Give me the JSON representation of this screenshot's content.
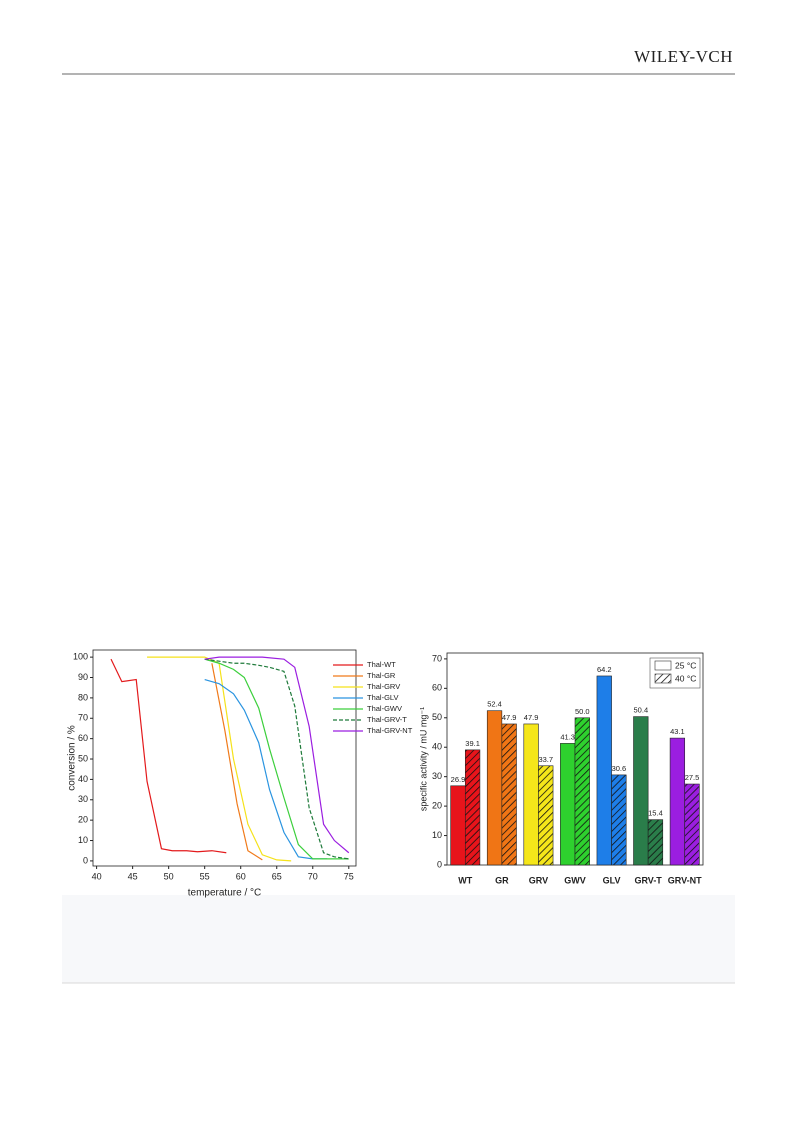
{
  "header": {
    "publisher": "WILEY-VCH"
  },
  "chart_data": [
    {
      "type": "line",
      "xlabel": "temperature / °C",
      "ylabel": "conversion / %",
      "xlim": [
        39.5,
        76
      ],
      "xticks": [
        40,
        45,
        50,
        55,
        60,
        65,
        70,
        75
      ],
      "ylim": [
        -2.5,
        103.5
      ],
      "yticks": [
        0,
        10,
        20,
        30,
        40,
        50,
        60,
        70,
        80,
        90,
        100
      ],
      "legend": "upper right",
      "series": [
        {
          "name": "Thal-WT",
          "color": "#e31a1c",
          "x": [
            42,
            43.5,
            45.5,
            47,
            49,
            50.5,
            52.5,
            54,
            56,
            58
          ],
          "values": [
            99,
            88,
            89,
            39,
            6,
            5,
            5,
            4.5,
            5,
            4
          ]
        },
        {
          "name": "Thal-GR",
          "color": "#f07a1a",
          "x": [
            56,
            57.8,
            59.5,
            61,
            63
          ],
          "values": [
            97,
            64,
            28,
            5,
            0.5
          ]
        },
        {
          "name": "Thal-GRV",
          "color": "#f5e21a",
          "x": [
            47,
            49,
            51,
            53,
            55,
            57,
            59,
            61,
            63,
            65,
            67
          ],
          "values": [
            100,
            100,
            100,
            100,
            100,
            97,
            50,
            18,
            3,
            0.5,
            0
          ]
        },
        {
          "name": "Thal-GLV",
          "color": "#2a94e0",
          "x": [
            55,
            57,
            59,
            60.5,
            62.5,
            64,
            66,
            68,
            70,
            72
          ],
          "values": [
            89,
            87,
            82,
            74,
            58,
            35,
            14,
            2,
            1,
            1
          ]
        },
        {
          "name": "Thal-GWV",
          "color": "#3ccf3c",
          "x": [
            55,
            57,
            59,
            60.5,
            62.5,
            64,
            66,
            68,
            70,
            72,
            75
          ],
          "values": [
            99,
            97,
            94,
            90,
            75,
            55,
            31,
            8,
            1,
            1,
            1
          ]
        },
        {
          "name": "Thal-GRV-T",
          "color": "#1e7a3a",
          "dashed": true,
          "x": [
            55,
            57,
            59,
            60.5,
            62.5,
            64,
            66,
            67.5,
            69.5,
            71.5,
            73,
            75
          ],
          "values": [
            99,
            98,
            97,
            97,
            96,
            95,
            93,
            76,
            26,
            4,
            2,
            1
          ]
        },
        {
          "name": "Thal-GRV-NT",
          "color": "#9b1ee0",
          "x": [
            55,
            57,
            59,
            61,
            63,
            66,
            67.5,
            69.5,
            71.5,
            73,
            75
          ],
          "values": [
            99,
            100,
            100,
            100,
            100,
            99,
            95,
            66,
            18,
            10,
            4
          ]
        }
      ]
    },
    {
      "type": "bar",
      "ylabel": "specific activity / mU mg⁻¹",
      "categories": [
        "WT",
        "GR",
        "GRV",
        "GWV",
        "GLV",
        "GRV-T",
        "GRV-NT"
      ],
      "colors": [
        "#e8141b",
        "#f07515",
        "#f5e61a",
        "#2ed12e",
        "#1e7ee8",
        "#2a7d4a",
        "#9b1ee0"
      ],
      "ylim": [
        0,
        72
      ],
      "yticks": [
        0,
        10,
        20,
        30,
        40,
        50,
        60,
        70
      ],
      "legend": "upper right",
      "series": [
        {
          "name": "25 °C",
          "hatch": false,
          "values": [
            26.9,
            52.4,
            47.9,
            41.3,
            64.2,
            50.4,
            43.1
          ],
          "value_labels": [
            "26.9",
            "52.4",
            "47.9",
            "41.3",
            "64.2",
            "50.4",
            "43.1"
          ]
        },
        {
          "name": "40 °C",
          "hatch": true,
          "values": [
            39.1,
            47.9,
            33.7,
            50.0,
            30.6,
            15.4,
            27.5
          ],
          "value_labels": [
            "39.1",
            "47.9",
            "33.7",
            "50.0",
            "30.6",
            "15.4",
            "27.5"
          ]
        }
      ]
    }
  ]
}
